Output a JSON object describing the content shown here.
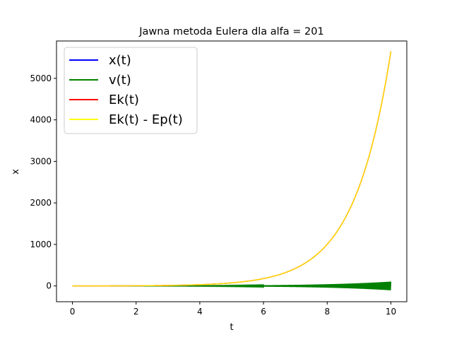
{
  "chart_data": {
    "type": "line",
    "title": "Jawna metoda Eulera dla alfa = 201",
    "xlabel": "t",
    "ylabel": "x",
    "xlim": [
      -0.5,
      10.5
    ],
    "ylim": [
      -380,
      5900
    ],
    "xticks": [
      0,
      2,
      4,
      6,
      8,
      10
    ],
    "yticks": [
      0,
      1000,
      2000,
      3000,
      4000,
      5000
    ],
    "grid": false,
    "legend_position": "top-left",
    "series": [
      {
        "name": "x(t)",
        "color": "#0000ff",
        "kind": "small-oscillation",
        "amplitude_end": 5
      },
      {
        "name": "v(t)",
        "color": "#008000",
        "kind": "growing-oscillation",
        "amplitude_end": 105
      },
      {
        "name": "Ek(t)",
        "color": "#ff0000",
        "kind": "exponential",
        "end_value": 5650
      },
      {
        "name": "Ek(t) - Ep(t)",
        "color": "#ffff00",
        "kind": "exponential",
        "end_value": 5650
      }
    ]
  }
}
